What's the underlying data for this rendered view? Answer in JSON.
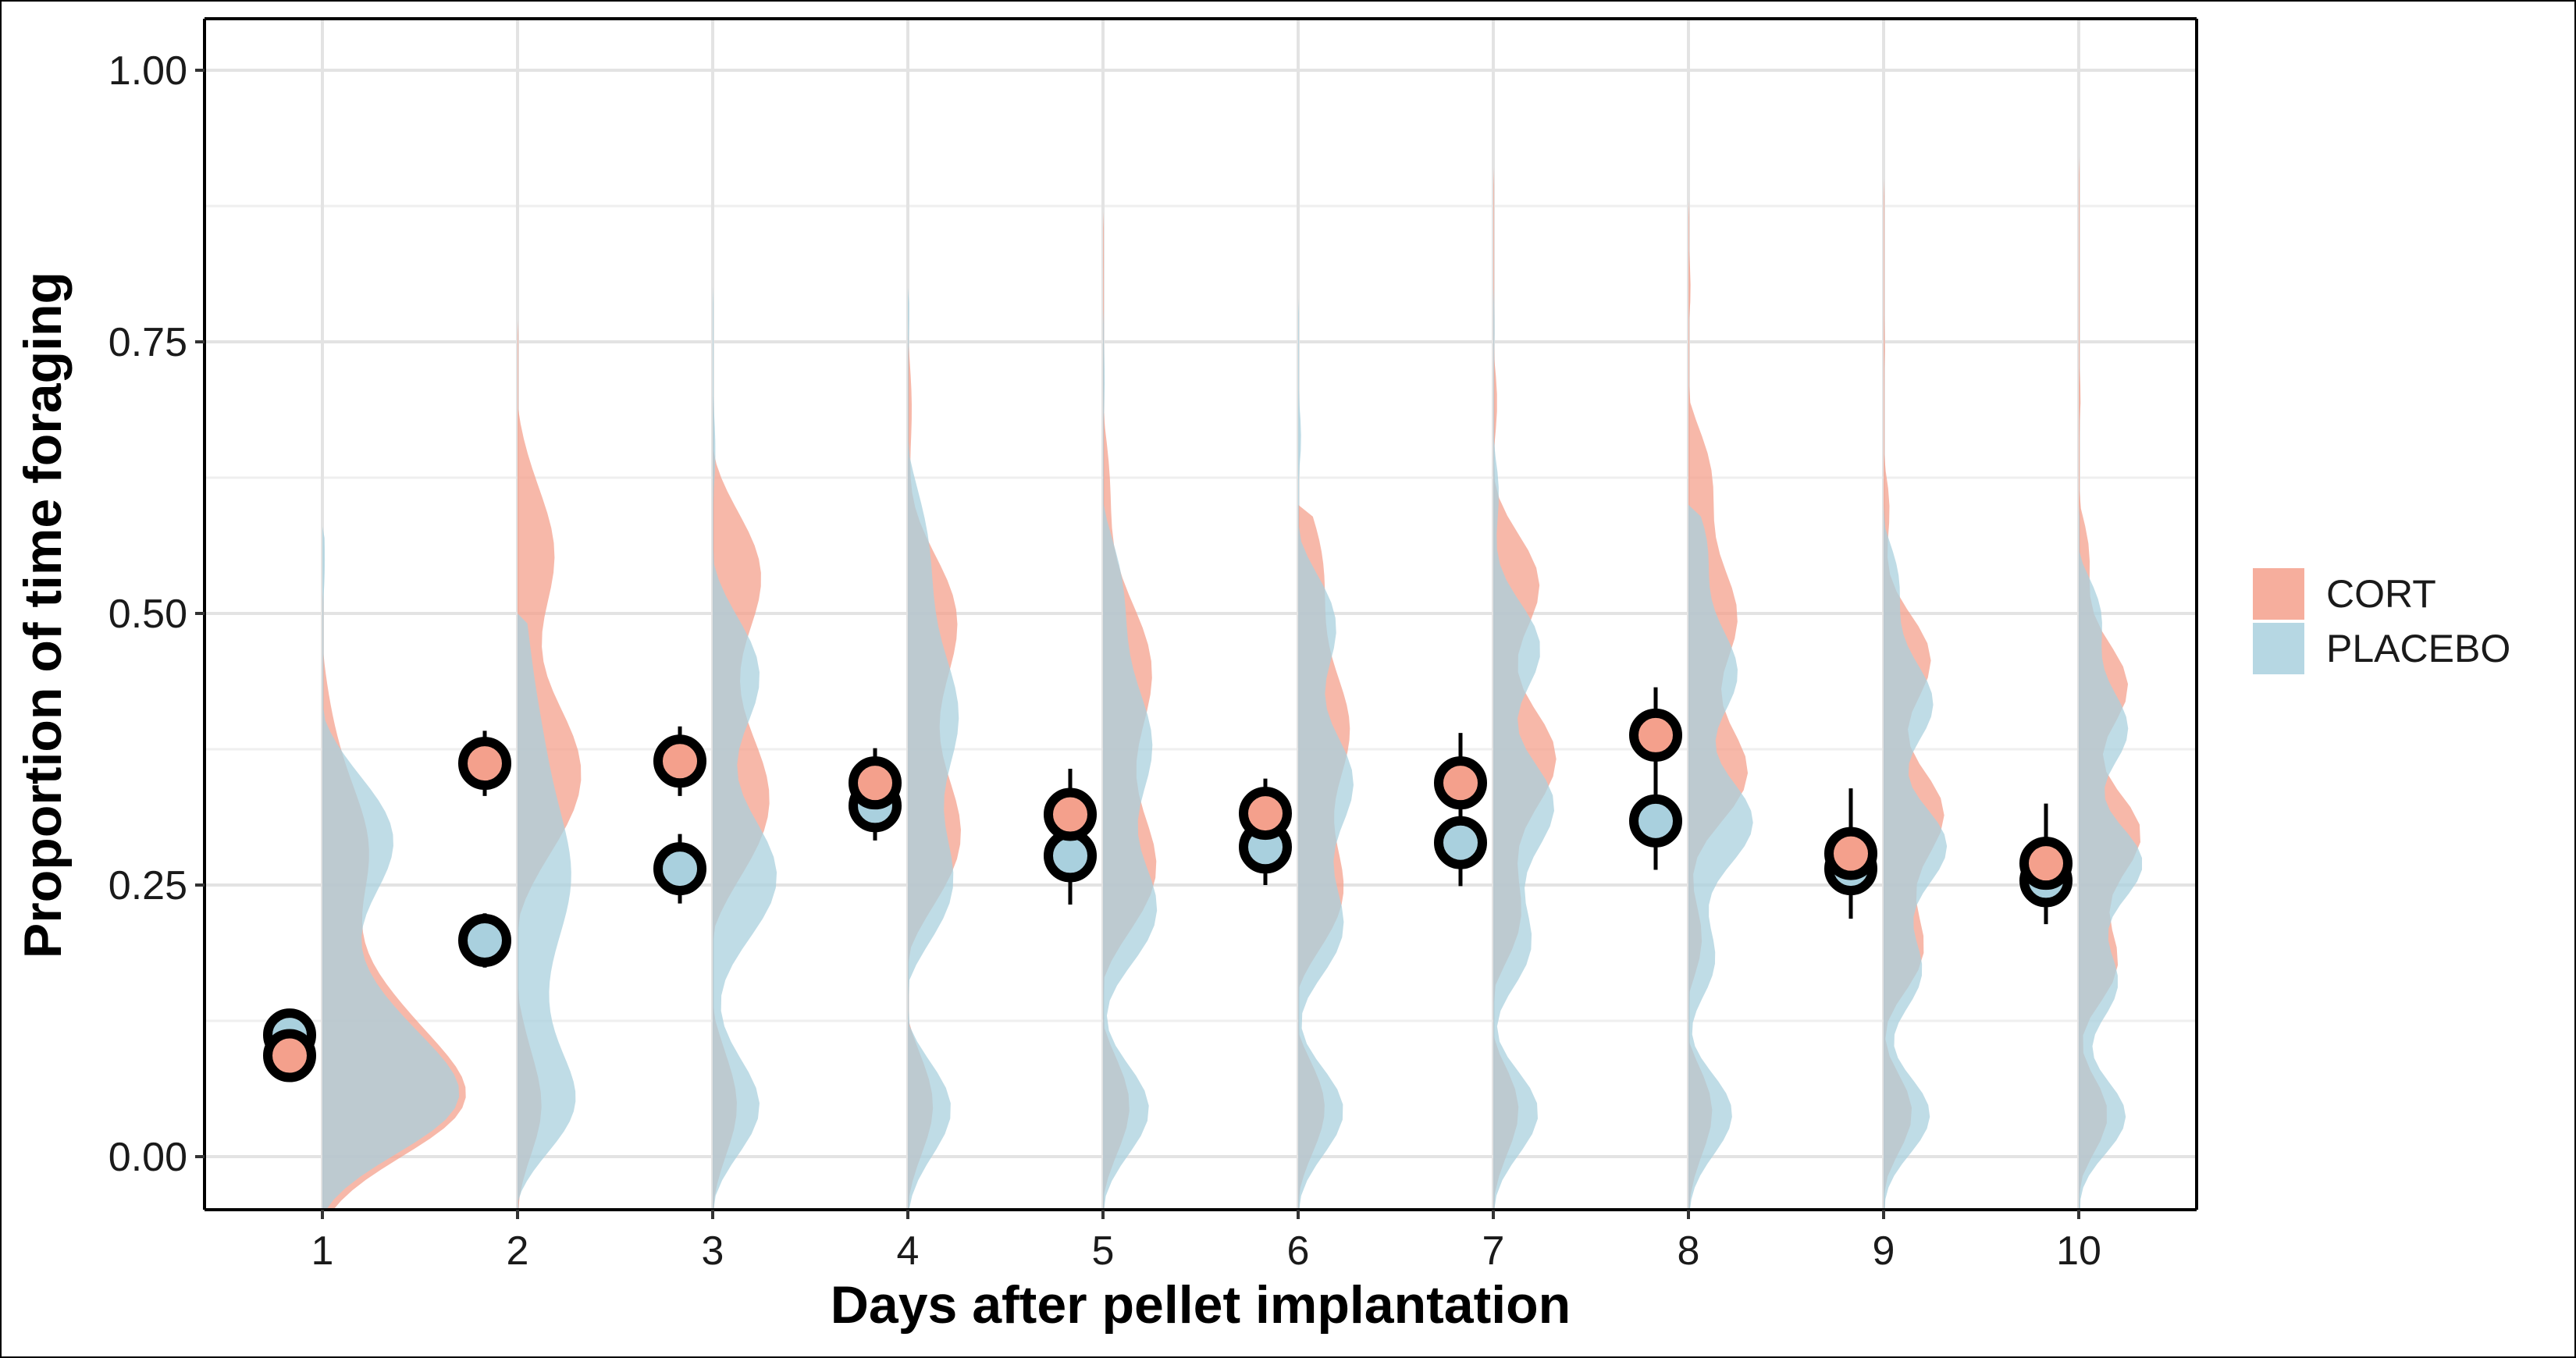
{
  "chart_data": {
    "type": "violin-point",
    "title": "",
    "xlabel": "Days after pellet implantation",
    "ylabel": "Proportion of time foraging",
    "categories": [
      "1",
      "2",
      "3",
      "4",
      "5",
      "6",
      "7",
      "8",
      "9",
      "10"
    ],
    "ylim": [
      -0.05,
      1.05
    ],
    "yticks": [
      0.0,
      0.25,
      0.5,
      0.75,
      1.0
    ],
    "ytick_labels": [
      "0.00",
      "0.25",
      "0.50",
      "0.75",
      "1.00"
    ],
    "grid": true,
    "legend_position": "right",
    "series": [
      {
        "name": "CORT",
        "color": "#F4A08C",
        "dark_color": "#D08070",
        "means": [
          0.093,
          0.362,
          0.364,
          0.344,
          0.315,
          0.316,
          0.344,
          0.388,
          0.279,
          0.27
        ],
        "errors": [
          0.02,
          0.03,
          0.032,
          0.032,
          0.042,
          0.032,
          0.046,
          0.044,
          0.06,
          0.055
        ]
      },
      {
        "name": "PLACEBO",
        "color": "#A9D0DE",
        "dark_color": "#8FB8C8",
        "means": [
          0.112,
          0.199,
          0.265,
          0.323,
          0.277,
          0.285,
          0.289,
          0.309,
          0.265,
          0.254
        ],
        "errors": [
          0.018,
          0.025,
          0.032,
          0.032,
          0.045,
          0.035,
          0.04,
          0.045,
          0.045,
          0.04
        ]
      }
    ]
  }
}
